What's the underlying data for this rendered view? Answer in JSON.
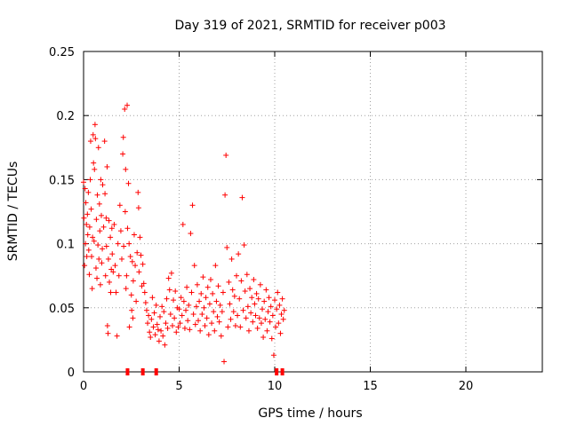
{
  "chart_data": {
    "type": "scatter",
    "title": "Day 319 of 2021, SRMTID for receiver p003",
    "xlabel": "GPS time / hours",
    "ylabel": "SRMTID / TECUs",
    "xlim": [
      0,
      24
    ],
    "ylim": [
      0,
      0.25
    ],
    "x_ticks": [
      0,
      5,
      10,
      15,
      20
    ],
    "x_tick_labels": [
      "0",
      "5",
      "10",
      "15",
      "20"
    ],
    "y_ticks": [
      0,
      0.05,
      0.1,
      0.15,
      0.2,
      0.25
    ],
    "y_tick_labels": [
      "0",
      "0.05",
      "0.1",
      "0.15",
      "0.2",
      "0.25"
    ],
    "grid": true,
    "marker": "+",
    "color": "#ff0000",
    "series": [
      {
        "name": "SRMTID",
        "points": [
          [
            0.0,
            0.148
          ],
          [
            0.02,
            0.12
          ],
          [
            0.05,
            0.083
          ],
          [
            0.08,
            0.143
          ],
          [
            0.1,
            0.1
          ],
          [
            0.12,
            0.132
          ],
          [
            0.15,
            0.115
          ],
          [
            0.17,
            0.09
          ],
          [
            0.2,
            0.123
          ],
          [
            0.22,
            0.107
          ],
          [
            0.25,
            0.14
          ],
          [
            0.27,
            0.095
          ],
          [
            0.3,
            0.076
          ],
          [
            0.32,
            0.113
          ],
          [
            0.35,
            0.15
          ],
          [
            0.37,
            0.18
          ],
          [
            0.4,
            0.127
          ],
          [
            0.42,
            0.09
          ],
          [
            0.45,
            0.065
          ],
          [
            0.47,
            0.105
          ],
          [
            0.5,
            0.185
          ],
          [
            0.52,
            0.163
          ],
          [
            0.55,
            0.102
          ],
          [
            0.57,
            0.158
          ],
          [
            0.6,
            0.193
          ],
          [
            0.62,
            0.182
          ],
          [
            0.65,
            0.081
          ],
          [
            0.67,
            0.119
          ],
          [
            0.7,
            0.073
          ],
          [
            0.72,
            0.138
          ],
          [
            0.75,
            0.099
          ],
          [
            0.78,
            0.175
          ],
          [
            0.8,
            0.088
          ],
          [
            0.83,
            0.131
          ],
          [
            0.85,
            0.11
          ],
          [
            0.88,
            0.068
          ],
          [
            0.9,
            0.15
          ],
          [
            0.93,
            0.122
          ],
          [
            0.95,
            0.085
          ],
          [
            0.98,
            0.096
          ],
          [
            1.0,
            0.146
          ],
          [
            1.05,
            0.113
          ],
          [
            1.1,
            0.18
          ],
          [
            1.12,
            0.139
          ],
          [
            1.15,
            0.075
          ],
          [
            1.18,
            0.12
          ],
          [
            1.2,
            0.098
          ],
          [
            1.23,
            0.16
          ],
          [
            1.25,
            0.036
          ],
          [
            1.28,
            0.03
          ],
          [
            1.3,
            0.088
          ],
          [
            1.33,
            0.118
          ],
          [
            1.35,
            0.07
          ],
          [
            1.4,
            0.105
          ],
          [
            1.42,
            0.062
          ],
          [
            1.45,
            0.08
          ],
          [
            1.48,
            0.112
          ],
          [
            1.5,
            0.092
          ],
          [
            1.55,
            0.078
          ],
          [
            1.6,
            0.115
          ],
          [
            1.65,
            0.083
          ],
          [
            1.7,
            0.062
          ],
          [
            1.75,
            0.028
          ],
          [
            1.8,
            0.1
          ],
          [
            1.85,
            0.075
          ],
          [
            1.9,
            0.13
          ],
          [
            1.95,
            0.11
          ],
          [
            2.0,
            0.088
          ],
          [
            2.05,
            0.17
          ],
          [
            2.08,
            0.183
          ],
          [
            2.1,
            0.098
          ],
          [
            2.15,
            0.205
          ],
          [
            2.18,
            0.125
          ],
          [
            2.2,
            0.158
          ],
          [
            2.22,
            0.065
          ],
          [
            2.25,
            0.075
          ],
          [
            2.28,
            0.208
          ],
          [
            2.3,
            0.112
          ],
          [
            2.35,
            0.147
          ],
          [
            2.38,
            0.1
          ],
          [
            2.4,
            0.035
          ],
          [
            2.45,
            0.09
          ],
          [
            2.5,
            0.06
          ],
          [
            2.52,
            0.048
          ],
          [
            2.55,
            0.086
          ],
          [
            2.58,
            0.042
          ],
          [
            2.6,
            0.071
          ],
          [
            2.65,
            0.107
          ],
          [
            2.7,
            0.083
          ],
          [
            2.75,
            0.055
          ],
          [
            2.8,
            0.093
          ],
          [
            2.85,
            0.14
          ],
          [
            2.88,
            0.128
          ],
          [
            2.9,
            0.078
          ],
          [
            2.95,
            0.105
          ],
          [
            3.0,
            0.091
          ],
          [
            3.05,
            0.067
          ],
          [
            3.1,
            0.084
          ],
          [
            3.15,
            0.069
          ],
          [
            3.2,
            0.062
          ],
          [
            3.25,
            0.054
          ],
          [
            3.3,
            0.048
          ],
          [
            3.35,
            0.038
          ],
          [
            3.4,
            0.044
          ],
          [
            3.45,
            0.031
          ],
          [
            3.5,
            0.027
          ],
          [
            3.55,
            0.041
          ],
          [
            3.6,
            0.058
          ],
          [
            3.65,
            0.035
          ],
          [
            3.7,
            0.046
          ],
          [
            3.75,
            0.029
          ],
          [
            3.8,
            0.052
          ],
          [
            3.85,
            0.037
          ],
          [
            3.9,
            0.033
          ],
          [
            3.95,
            0.024
          ],
          [
            4.0,
            0.043
          ],
          [
            4.05,
            0.032
          ],
          [
            4.1,
            0.051
          ],
          [
            4.15,
            0.028
          ],
          [
            4.2,
            0.047
          ],
          [
            4.25,
            0.021
          ],
          [
            4.3,
            0.038
          ],
          [
            4.35,
            0.057
          ],
          [
            4.4,
            0.034
          ],
          [
            4.45,
            0.073
          ],
          [
            4.5,
            0.064
          ],
          [
            4.55,
            0.045
          ],
          [
            4.6,
            0.077
          ],
          [
            4.65,
            0.036
          ],
          [
            4.7,
            0.056
          ],
          [
            4.75,
            0.042
          ],
          [
            4.8,
            0.063
          ],
          [
            4.85,
            0.031
          ],
          [
            4.9,
            0.05
          ],
          [
            4.95,
            0.035
          ],
          [
            5.0,
            0.049
          ],
          [
            5.05,
            0.038
          ],
          [
            5.1,
            0.058
          ],
          [
            5.15,
            0.044
          ],
          [
            5.2,
            0.115
          ],
          [
            5.25,
            0.055
          ],
          [
            5.3,
            0.034
          ],
          [
            5.35,
            0.048
          ],
          [
            5.4,
            0.066
          ],
          [
            5.45,
            0.04
          ],
          [
            5.5,
            0.052
          ],
          [
            5.55,
            0.033
          ],
          [
            5.6,
            0.108
          ],
          [
            5.65,
            0.062
          ],
          [
            5.7,
            0.13
          ],
          [
            5.75,
            0.045
          ],
          [
            5.8,
            0.083
          ],
          [
            5.85,
            0.037
          ],
          [
            5.9,
            0.051
          ],
          [
            5.95,
            0.068
          ],
          [
            6.0,
            0.04
          ],
          [
            6.05,
            0.055
          ],
          [
            6.1,
            0.032
          ],
          [
            6.15,
            0.061
          ],
          [
            6.2,
            0.045
          ],
          [
            6.25,
            0.074
          ],
          [
            6.3,
            0.05
          ],
          [
            6.35,
            0.036
          ],
          [
            6.4,
            0.058
          ],
          [
            6.45,
            0.042
          ],
          [
            6.5,
            0.066
          ],
          [
            6.55,
            0.029
          ],
          [
            6.6,
            0.053
          ],
          [
            6.65,
            0.072
          ],
          [
            6.7,
            0.038
          ],
          [
            6.75,
            0.061
          ],
          [
            6.8,
            0.047
          ],
          [
            6.85,
            0.032
          ],
          [
            6.9,
            0.083
          ],
          [
            6.95,
            0.055
          ],
          [
            7.0,
            0.043
          ],
          [
            7.05,
            0.067
          ],
          [
            7.1,
            0.039
          ],
          [
            7.15,
            0.052
          ],
          [
            7.2,
            0.028
          ],
          [
            7.25,
            0.047
          ],
          [
            7.3,
            0.062
          ],
          [
            7.35,
            0.008
          ],
          [
            7.4,
            0.138
          ],
          [
            7.45,
            0.169
          ],
          [
            7.5,
            0.097
          ],
          [
            7.55,
            0.035
          ],
          [
            7.6,
            0.07
          ],
          [
            7.65,
            0.053
          ],
          [
            7.7,
            0.041
          ],
          [
            7.75,
            0.088
          ],
          [
            7.8,
            0.064
          ],
          [
            7.85,
            0.047
          ],
          [
            7.9,
            0.059
          ],
          [
            7.95,
            0.036
          ],
          [
            8.0,
            0.075
          ],
          [
            8.05,
            0.044
          ],
          [
            8.1,
            0.092
          ],
          [
            8.15,
            0.057
          ],
          [
            8.2,
            0.035
          ],
          [
            8.25,
            0.071
          ],
          [
            8.3,
            0.136
          ],
          [
            8.35,
            0.048
          ],
          [
            8.4,
            0.099
          ],
          [
            8.45,
            0.063
          ],
          [
            8.5,
            0.042
          ],
          [
            8.55,
            0.076
          ],
          [
            8.6,
            0.051
          ],
          [
            8.65,
            0.032
          ],
          [
            8.7,
            0.065
          ],
          [
            8.75,
            0.046
          ],
          [
            8.8,
            0.058
          ],
          [
            8.85,
            0.039
          ],
          [
            8.9,
            0.072
          ],
          [
            8.95,
            0.053
          ],
          [
            9.0,
            0.044
          ],
          [
            9.05,
            0.061
          ],
          [
            9.1,
            0.034
          ],
          [
            9.15,
            0.057
          ],
          [
            9.2,
            0.042
          ],
          [
            9.25,
            0.068
          ],
          [
            9.3,
            0.038
          ],
          [
            9.35,
            0.049
          ],
          [
            9.4,
            0.027
          ],
          [
            9.45,
            0.055
          ],
          [
            9.5,
            0.041
          ],
          [
            9.55,
            0.064
          ],
          [
            9.6,
            0.032
          ],
          [
            9.65,
            0.047
          ],
          [
            9.7,
            0.058
          ],
          [
            9.75,
            0.039
          ],
          [
            9.8,
            0.051
          ],
          [
            9.85,
            0.026
          ],
          [
            9.9,
            0.044
          ],
          [
            9.95,
            0.013
          ],
          [
            10.0,
            0.056
          ],
          [
            10.05,
            0.035
          ],
          [
            10.1,
            0.049
          ],
          [
            10.15,
            0.062
          ],
          [
            10.2,
            0.038
          ],
          [
            10.25,
            0.052
          ],
          [
            10.3,
            0.03
          ],
          [
            10.35,
            0.045
          ],
          [
            10.4,
            0.057
          ],
          [
            10.45,
            0.041
          ],
          [
            10.5,
            0.048
          ]
        ]
      }
    ],
    "flag_markers": {
      "description": "small red ticks drawn on the x-axis baseline",
      "x": [
        2.3,
        3.1,
        3.8,
        10.1,
        10.4
      ]
    }
  }
}
